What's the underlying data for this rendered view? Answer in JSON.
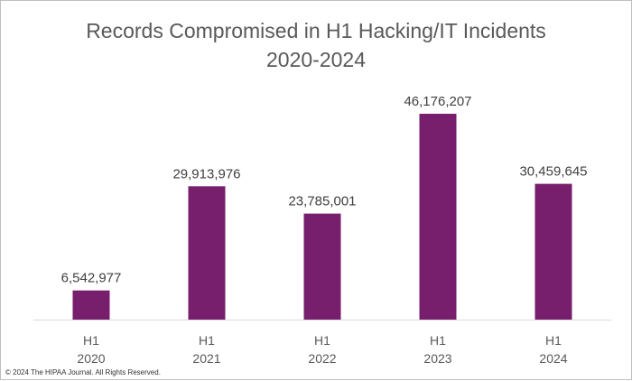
{
  "chart_data": {
    "type": "bar",
    "title_line1": "Records Compromised in H1 Hacking/IT Incidents",
    "title_line2": "2020-2024",
    "categories": [
      [
        "H1",
        "2020"
      ],
      [
        "H1",
        "2021"
      ],
      [
        "H1",
        "2022"
      ],
      [
        "H1",
        "2023"
      ],
      [
        "H1",
        "2024"
      ]
    ],
    "values": [
      6542977,
      29913976,
      23785001,
      46176207,
      30459645
    ],
    "value_labels": [
      "6,542,977",
      "29,913,976",
      "23,785,001",
      "46,176,207",
      "30,459,645"
    ],
    "bar_color": "#771F6D",
    "ylim": [
      0,
      50000000
    ],
    "grid": false,
    "legend": "none"
  },
  "footer": {
    "copyright": "© 2024 The HIPAA Journal. All Rights Reserved."
  }
}
